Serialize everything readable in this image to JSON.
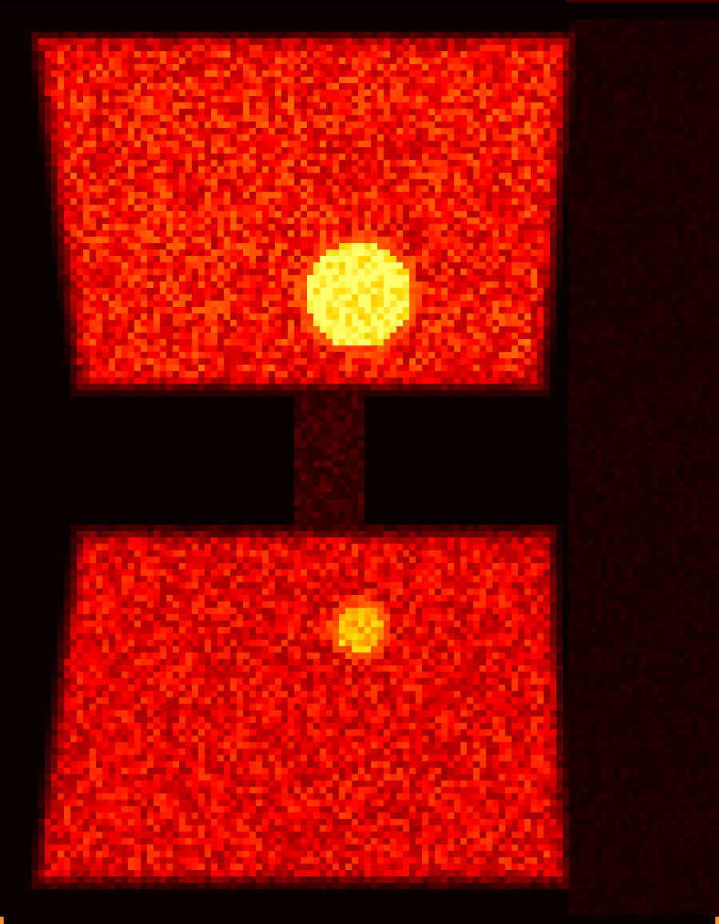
{
  "image": {
    "kind": "pseudocolor-intensity-scan",
    "colormap": "hot",
    "palette": {
      "background": "#000000",
      "dim": "#5a0000",
      "mid": "#d01000",
      "bright": "#ff3a00",
      "hotspot": "#ffd21a",
      "hotspot_peak": "#fff060"
    },
    "regions": [
      {
        "name": "upper-panel",
        "shape": "trapezoid",
        "relative_intensity": 0.55,
        "edge_glow": true,
        "hotspot": {
          "shape": "disc",
          "relative_intensity": 1.0,
          "size": "large"
        }
      },
      {
        "name": "lower-panel",
        "shape": "trapezoid",
        "relative_intensity": 0.5,
        "edge_glow": true,
        "hotspot": {
          "shape": "disc",
          "relative_intensity": 0.85,
          "size": "small"
        }
      }
    ],
    "noise": "pixelated-speckle"
  }
}
